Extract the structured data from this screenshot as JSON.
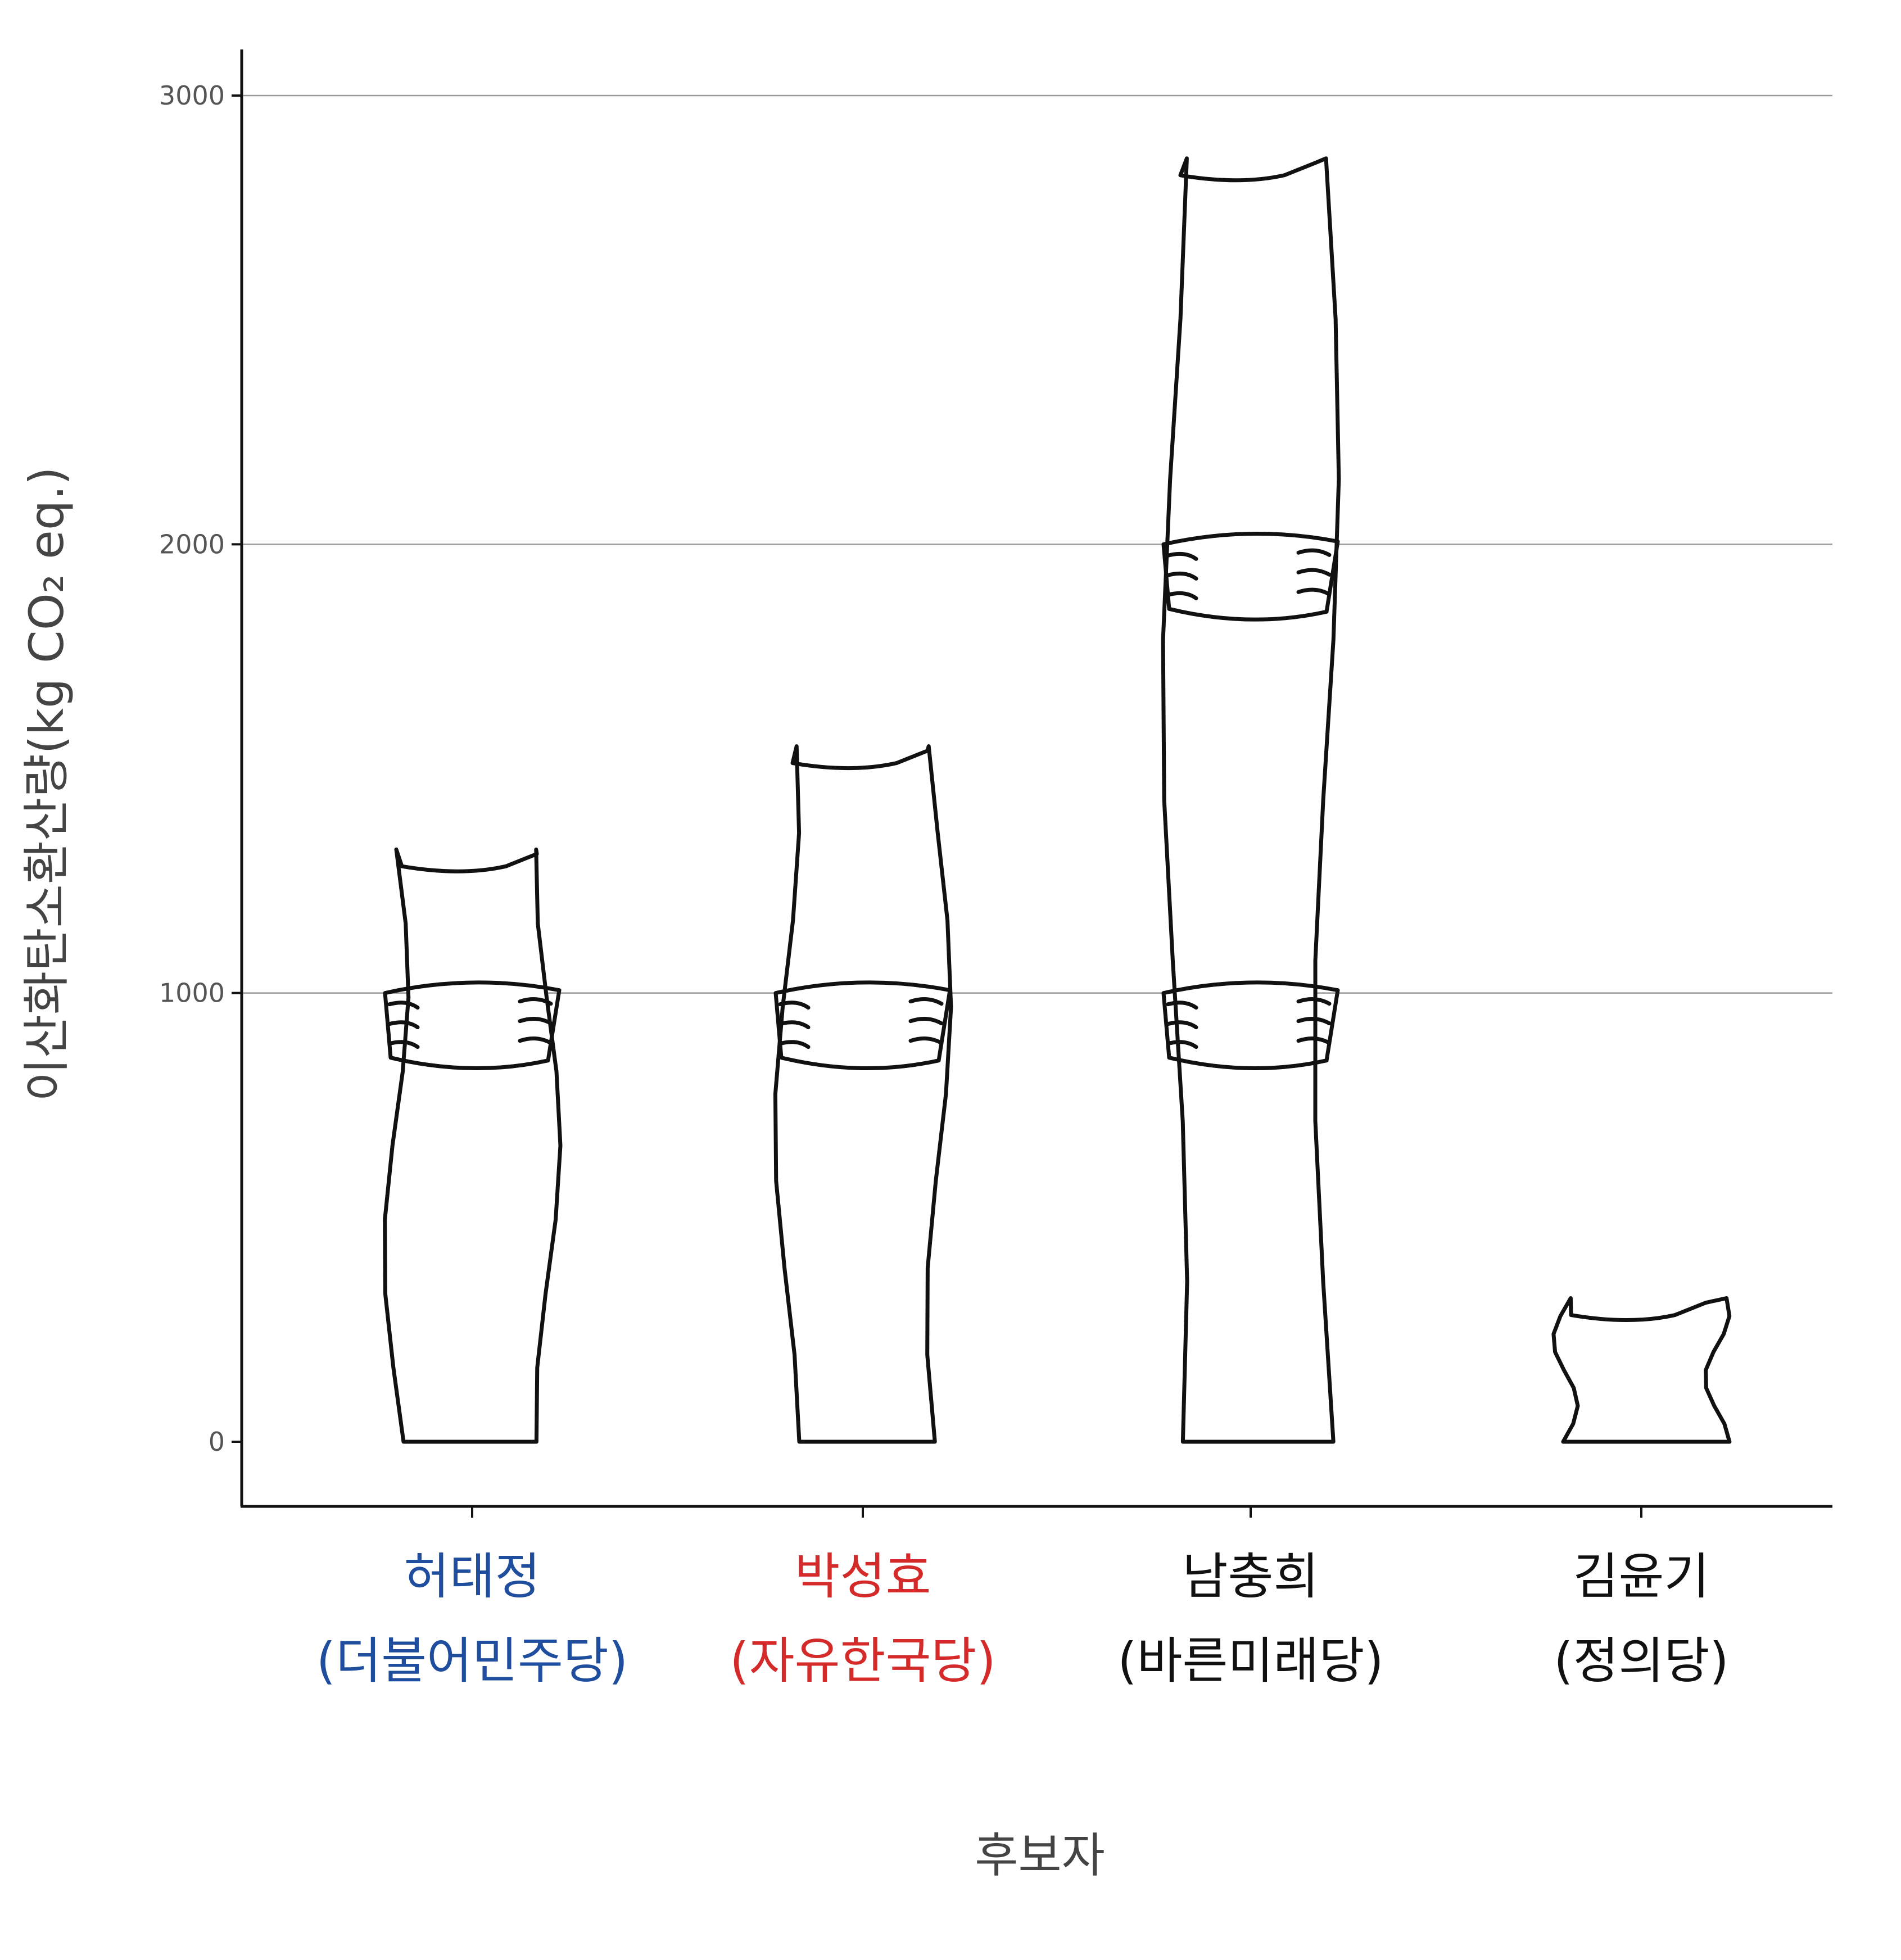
{
  "chart_data": {
    "type": "bar",
    "xlabel": "후보자",
    "ylabel": "이산화탄소환산량(kg CO₂ eq.)",
    "ylim": [
      -150,
      3100
    ],
    "yticks": [
      0,
      1000,
      2000,
      3000
    ],
    "grid": true,
    "categories": [
      {
        "name": "허태정",
        "party": "(더불어민주당)",
        "color": "#1f4e9e"
      },
      {
        "name": "박성효",
        "party": "(자유한국당)",
        "color": "#d42a2a"
      },
      {
        "name": "남충희",
        "party": "(바른미래당)",
        "color": "#111111"
      },
      {
        "name": "김윤기",
        "party": "(정의당)",
        "color": "#111111"
      }
    ],
    "values": [
      1320,
      1550,
      2860,
      320
    ]
  }
}
